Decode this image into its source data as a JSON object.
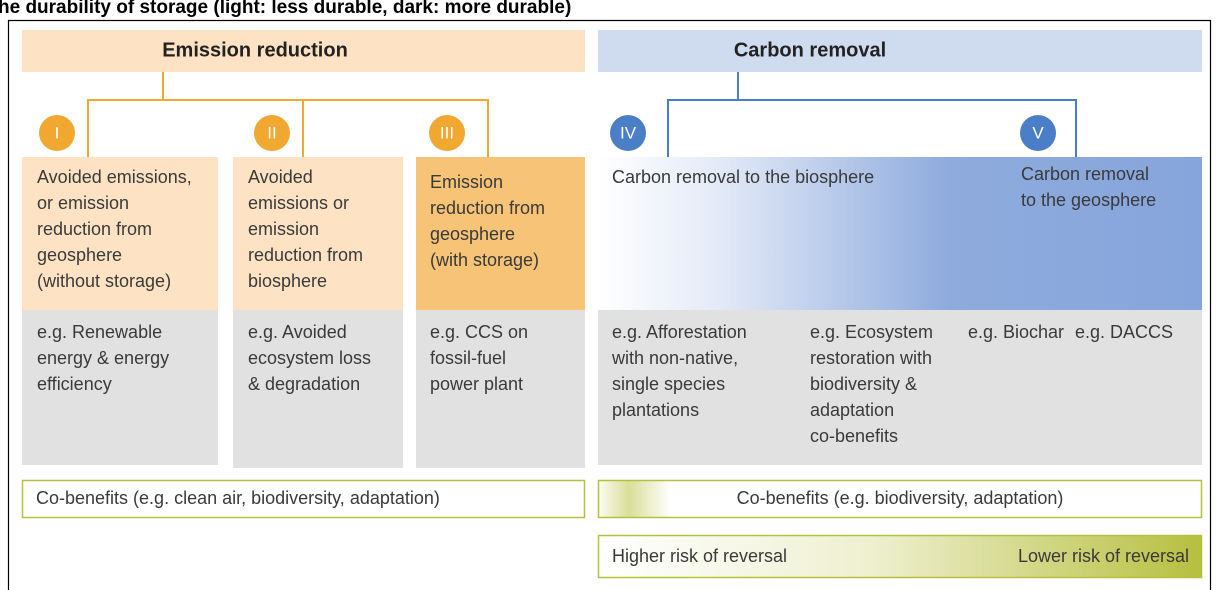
{
  "title": "he durability of storage (light: less durable, dark: more durable)",
  "emission": {
    "heading": "Emission reduction",
    "columns": [
      {
        "numeral": "I",
        "description": [
          "Avoided emissions,",
          "or emission",
          "reduction from",
          "geosphere",
          "(without storage)"
        ],
        "example": [
          "e.g. Renewable",
          "energy & energy",
          "efficiency"
        ]
      },
      {
        "numeral": "II",
        "description": [
          "Avoided",
          "emissions or",
          "emission",
          "reduction from",
          "biosphere"
        ],
        "example": [
          "e.g. Avoided",
          "ecosystem loss",
          "& degradation"
        ]
      },
      {
        "numeral": "III",
        "description": [
          "Emission",
          "reduction from",
          "geosphere",
          "(with storage)"
        ],
        "example": [
          "e.g. CCS on",
          "fossil-fuel",
          "power plant"
        ]
      }
    ],
    "co_benefits": "Co-benefits (e.g. clean air, biodiversity, adaptation)"
  },
  "removal": {
    "heading": "Carbon removal",
    "columns": [
      {
        "numeral": "IV",
        "description": [
          "Carbon removal to the biosphere"
        ]
      },
      {
        "numeral": "V",
        "description": [
          "Carbon removal",
          "to the geosphere"
        ]
      }
    ],
    "examples": [
      [
        "e.g. Afforestation",
        "with non-native,",
        "single species",
        "plantations"
      ],
      [
        "e.g. Ecosystem",
        "restoration with",
        "biodiversity &",
        "adaptation",
        "co-benefits"
      ],
      [
        "e.g. Biochar"
      ],
      [
        "e.g. DACCS"
      ]
    ],
    "co_benefits": "Co-benefits (e.g. biodiversity, adaptation)",
    "risk": {
      "higher": "Higher risk of reversal",
      "lower": "Lower risk of reversal"
    }
  }
}
